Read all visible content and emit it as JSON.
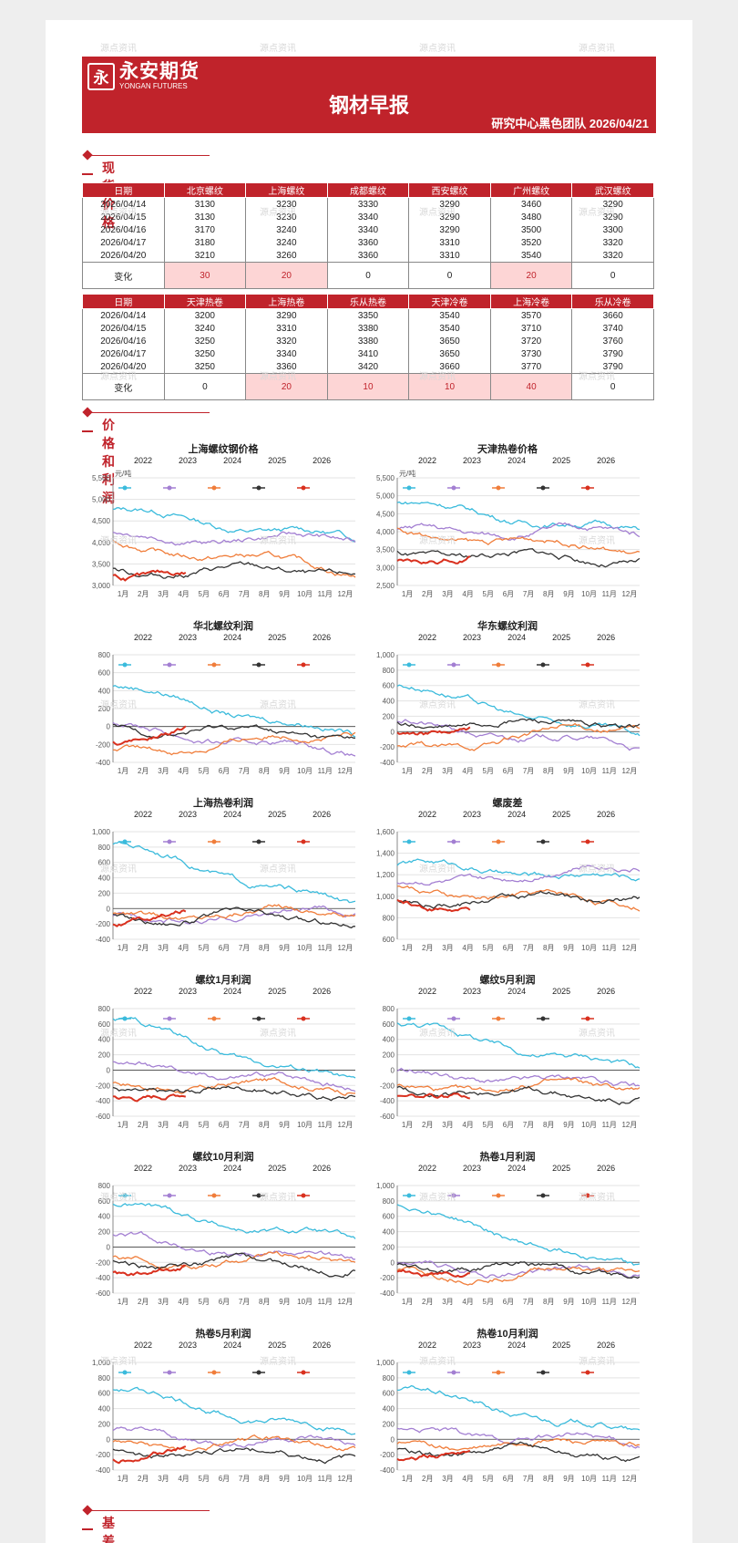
{
  "header": {
    "logo_cn": "永安期货",
    "logo_en": "YONGAN FUTURES",
    "logo_mark": "永",
    "title": "钢材早报",
    "subtitle": "研究中心黑色团队  2026/04/21"
  },
  "sections": {
    "spot": "现货价格",
    "profit": "价格和利润",
    "basis": "基差和月差"
  },
  "watermark": "源点资讯",
  "colors": {
    "brand": "#c0232b",
    "s2022": "#3bbbdc",
    "s2023": "#a37fd2",
    "s2024": "#f07d3a",
    "s2025": "#333333",
    "s2026": "#d9301e"
  },
  "table1": {
    "headers": [
      "日期",
      "北京螺纹",
      "上海螺纹",
      "成都螺纹",
      "西安螺纹",
      "广州螺纹",
      "武汉螺纹"
    ],
    "rows": [
      [
        "2026/04/14",
        "3130",
        "3230",
        "3330",
        "3290",
        "3460",
        "3290"
      ],
      [
        "2026/04/15",
        "3130",
        "3230",
        "3340",
        "3290",
        "3480",
        "3290"
      ],
      [
        "2026/04/16",
        "3170",
        "3240",
        "3340",
        "3290",
        "3500",
        "3300"
      ],
      [
        "2026/04/17",
        "3180",
        "3240",
        "3360",
        "3310",
        "3520",
        "3320"
      ],
      [
        "2026/04/20",
        "3210",
        "3260",
        "3360",
        "3310",
        "3540",
        "3320"
      ]
    ],
    "change": [
      "变化",
      "30",
      "20",
      "0",
      "0",
      "20",
      "0"
    ]
  },
  "table2": {
    "headers": [
      "日期",
      "天津热卷",
      "上海热卷",
      "乐从热卷",
      "天津冷卷",
      "上海冷卷",
      "乐从冷卷"
    ],
    "rows": [
      [
        "2026/04/14",
        "3200",
        "3290",
        "3350",
        "3540",
        "3570",
        "3660"
      ],
      [
        "2026/04/15",
        "3240",
        "3310",
        "3380",
        "3540",
        "3710",
        "3740"
      ],
      [
        "2026/04/16",
        "3250",
        "3320",
        "3380",
        "3650",
        "3720",
        "3760"
      ],
      [
        "2026/04/17",
        "3250",
        "3340",
        "3410",
        "3650",
        "3730",
        "3790"
      ],
      [
        "2026/04/20",
        "3250",
        "3360",
        "3420",
        "3660",
        "3770",
        "3790"
      ]
    ],
    "change": [
      "变化",
      "0",
      "20",
      "10",
      "10",
      "40",
      "0"
    ]
  },
  "legend": [
    "2022",
    "2023",
    "2024",
    "2025",
    "2026"
  ],
  "months": [
    "1月",
    "2月",
    "3月",
    "4月",
    "5月",
    "6月",
    "7月",
    "8月",
    "9月",
    "10月",
    "11月",
    "12月"
  ],
  "chart_data": [
    {
      "type": "line",
      "title": "上海螺纹钢价格",
      "unit": "元/吨",
      "ylim": [
        3000,
        5500
      ],
      "ticks": [
        "5,500",
        "5,000",
        "4,500",
        "4,000",
        "3,500",
        "3,000"
      ],
      "x": "day-of-year",
      "series": [
        {
          "name": "2022",
          "start": 4750,
          "end": 4050
        },
        {
          "name": "2023",
          "start": 4150,
          "end": 4050
        },
        {
          "name": "2024",
          "start": 3950,
          "end": 3350
        },
        {
          "name": "2025",
          "start": 3350,
          "end": 3300
        },
        {
          "name": "2026",
          "start": 3300,
          "end": 3250
        }
      ]
    },
    {
      "type": "line",
      "title": "天津热卷价格",
      "unit": "元/吨",
      "ylim": [
        2500,
        5500
      ],
      "ticks": [
        "5,500",
        "5,000",
        "4,500",
        "4,000",
        "3,500",
        "3,000",
        "2,500"
      ],
      "series": [
        {
          "name": "2022",
          "start": 4800,
          "end": 4000
        },
        {
          "name": "2023",
          "start": 4000,
          "end": 4000
        },
        {
          "name": "2024",
          "start": 3950,
          "end": 3500
        },
        {
          "name": "2025",
          "start": 3400,
          "end": 3200
        },
        {
          "name": "2026",
          "start": 3250,
          "end": 3250
        }
      ]
    },
    {
      "type": "line",
      "title": "华北螺纹利润",
      "ylim": [
        -400,
        800
      ],
      "ticks": [
        "800",
        "600",
        "400",
        "200",
        "0",
        "-200",
        "-400"
      ],
      "series": [
        {
          "name": "2022",
          "start": 450,
          "end": -100
        },
        {
          "name": "2023",
          "start": 0,
          "end": -300
        },
        {
          "name": "2024",
          "start": -300,
          "end": -50
        },
        {
          "name": "2025",
          "start": 0,
          "end": -100
        },
        {
          "name": "2026",
          "start": -150,
          "end": -50
        }
      ]
    },
    {
      "type": "line",
      "title": "华东螺纹利润",
      "ylim": [
        -400,
        1000
      ],
      "ticks": [
        "1,000",
        "800",
        "600",
        "400",
        "200",
        "0",
        "-200",
        "-400"
      ],
      "series": [
        {
          "name": "2022",
          "start": 600,
          "end": -100
        },
        {
          "name": "2023",
          "start": 100,
          "end": -200
        },
        {
          "name": "2024",
          "start": -250,
          "end": 100
        },
        {
          "name": "2025",
          "start": 100,
          "end": 100
        },
        {
          "name": "2026",
          "start": 50,
          "end": 0
        }
      ]
    },
    {
      "type": "line",
      "title": "上海热卷利润",
      "ylim": [
        -400,
        1000
      ],
      "ticks": [
        "1,000",
        "800",
        "600",
        "400",
        "200",
        "0",
        "-200",
        "-400"
      ],
      "series": [
        {
          "name": "2022",
          "start": 850,
          "end": 0
        },
        {
          "name": "2023",
          "start": -150,
          "end": -50
        },
        {
          "name": "2024",
          "start": -100,
          "end": 0
        },
        {
          "name": "2025",
          "start": -100,
          "end": -150
        },
        {
          "name": "2026",
          "start": -150,
          "end": -50
        }
      ]
    },
    {
      "type": "line",
      "title": "螺废差",
      "ylim": [
        600,
        1600
      ],
      "ticks": [
        "1,600",
        "1,400",
        "1,200",
        "1,000",
        "800",
        "600"
      ],
      "series": [
        {
          "name": "2022",
          "start": 1300,
          "end": 1150
        },
        {
          "name": "2023",
          "start": 1100,
          "end": 1300
        },
        {
          "name": "2024",
          "start": 1050,
          "end": 950
        },
        {
          "name": "2025",
          "start": 950,
          "end": 1000
        },
        {
          "name": "2026",
          "start": 1000,
          "end": 850
        }
      ]
    },
    {
      "type": "line",
      "title": "螺纹1月利润",
      "ylim": [
        -600,
        800
      ],
      "ticks": [
        "800",
        "600",
        "400",
        "200",
        "0",
        "-200",
        "-400",
        "-600"
      ],
      "series": [
        {
          "name": "2022",
          "start": 650,
          "end": -200
        },
        {
          "name": "2023",
          "start": 50,
          "end": -200
        },
        {
          "name": "2024",
          "start": -200,
          "end": -200
        },
        {
          "name": "2025",
          "start": -250,
          "end": -300
        },
        {
          "name": "2026",
          "start": -300,
          "end": -300
        }
      ]
    },
    {
      "type": "line",
      "title": "螺纹5月利润",
      "ylim": [
        -600,
        800
      ],
      "ticks": [
        "800",
        "600",
        "400",
        "200",
        "0",
        "-200",
        "-400",
        "-600"
      ],
      "series": [
        {
          "name": "2022",
          "start": 600,
          "end": 0
        },
        {
          "name": "2023",
          "start": -50,
          "end": -200
        },
        {
          "name": "2024",
          "start": -250,
          "end": -200
        },
        {
          "name": "2025",
          "start": -250,
          "end": -350
        },
        {
          "name": "2026",
          "start": -300,
          "end": -350
        }
      ]
    },
    {
      "type": "line",
      "title": "螺纹10月利润",
      "ylim": [
        -600,
        800
      ],
      "ticks": [
        "800",
        "600",
        "400",
        "200",
        "0",
        "-200",
        "-400",
        "-600"
      ],
      "series": [
        {
          "name": "2022",
          "start": 550,
          "end": 50
        },
        {
          "name": "2023",
          "start": 100,
          "end": -150
        },
        {
          "name": "2024",
          "start": -200,
          "end": -150
        },
        {
          "name": "2025",
          "start": -200,
          "end": -250
        },
        {
          "name": "2026",
          "start": -300,
          "end": -250
        }
      ]
    },
    {
      "type": "line",
      "title": "热卷1月利润",
      "ylim": [
        -400,
        1000
      ],
      "ticks": [
        "1,000",
        "800",
        "600",
        "400",
        "200",
        "0",
        "-200",
        "-400"
      ],
      "series": [
        {
          "name": "2022",
          "start": 750,
          "end": -100
        },
        {
          "name": "2023",
          "start": -50,
          "end": -150
        },
        {
          "name": "2024",
          "start": -150,
          "end": -100
        },
        {
          "name": "2025",
          "start": -50,
          "end": -100
        },
        {
          "name": "2026",
          "start": -100,
          "end": -150
        }
      ]
    },
    {
      "type": "line",
      "title": "热卷5月利润",
      "ylim": [
        -400,
        1000
      ],
      "ticks": [
        "1,000",
        "800",
        "600",
        "400",
        "200",
        "0",
        "-200",
        "-400"
      ],
      "series": [
        {
          "name": "2022",
          "start": 650,
          "end": 50
        },
        {
          "name": "2023",
          "start": 50,
          "end": -50
        },
        {
          "name": "2024",
          "start": -100,
          "end": -50
        },
        {
          "name": "2025",
          "start": -150,
          "end": -200
        },
        {
          "name": "2026",
          "start": -200,
          "end": -100
        }
      ]
    },
    {
      "type": "line",
      "title": "热卷10月利润",
      "ylim": [
        -400,
        1000
      ],
      "ticks": [
        "1,000",
        "800",
        "600",
        "400",
        "200",
        "0",
        "-200",
        "-400"
      ],
      "series": [
        {
          "name": "2022",
          "start": 650,
          "end": 50
        },
        {
          "name": "2023",
          "start": 100,
          "end": -50
        },
        {
          "name": "2024",
          "start": -100,
          "end": -50
        },
        {
          "name": "2025",
          "start": -150,
          "end": -200
        },
        {
          "name": "2026",
          "start": -200,
          "end": -150
        }
      ]
    }
  ]
}
